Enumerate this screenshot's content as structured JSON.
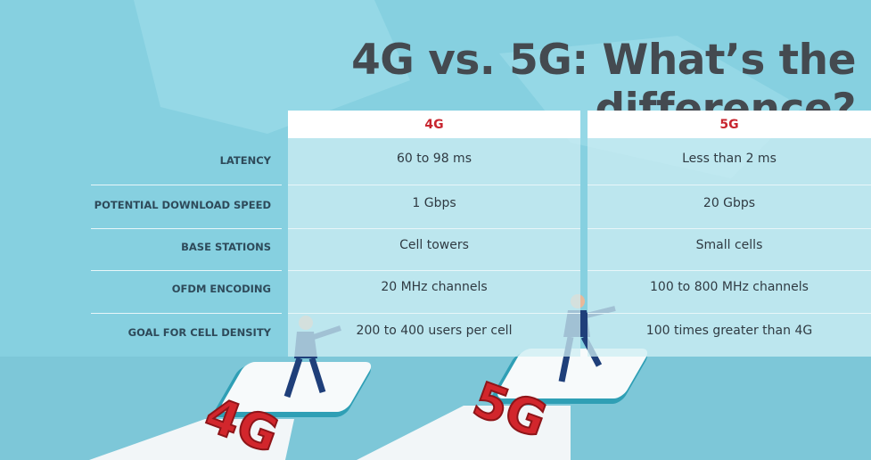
{
  "header": {
    "title": "4G vs. 5G: What’s the difference?"
  },
  "table": {
    "columns": [
      "4G",
      "5G"
    ],
    "rows": [
      [
        "LATENCY",
        "60 to 98 ms",
        "Less than 2 ms"
      ],
      [
        "POTENTIAL DOWNLOAD SPEED",
        "1 Gbps",
        "20 Gbps"
      ],
      [
        "BASE STATIONS",
        "Cell towers",
        "Small cells"
      ],
      [
        "OFDM ENCODING",
        "20 MHz channels",
        "100 to 800 MHz channels"
      ],
      [
        "GOAL FOR CELL DENSITY",
        "200 to 400 users per cell",
        "100 times greater than 4G"
      ]
    ]
  },
  "illustration": {
    "badges": [
      "4G",
      "5G"
    ]
  }
}
